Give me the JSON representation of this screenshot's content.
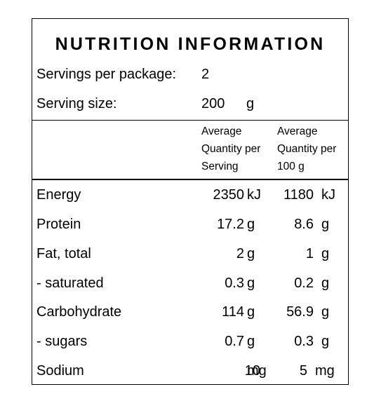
{
  "title": "NUTRITION INFORMATION",
  "servings_per_package": {
    "label": "Servings per package:",
    "value": "2"
  },
  "serving_size": {
    "label": "Serving size:",
    "value": "200",
    "unit": "g"
  },
  "column_headers": {
    "per_serving": [
      "Average",
      "Quantity per",
      "Serving"
    ],
    "per_100g": [
      "Average",
      "Quantity per",
      "100 g"
    ]
  },
  "rows": [
    {
      "name": "Energy",
      "serving_value": "2350",
      "serving_unit": "kJ",
      "per100_value": "1180",
      "per100_unit": "kJ"
    },
    {
      "name": "Protein",
      "serving_value": "17.2",
      "serving_unit": "g",
      "per100_value": "8.6",
      "per100_unit": "g"
    },
    {
      "name": "Fat, total",
      "serving_value": "2",
      "serving_unit": "g",
      "per100_value": "1",
      "per100_unit": "g"
    },
    {
      "name": "- saturated",
      "serving_value": "0.3",
      "serving_unit": "g",
      "per100_value": "0.2",
      "per100_unit": "g"
    },
    {
      "name": "Carbohydrate",
      "serving_value": "114",
      "serving_unit": "g",
      "per100_value": "56.9",
      "per100_unit": "g"
    },
    {
      "name": "- sugars",
      "serving_value": "0.7",
      "serving_unit": "g",
      "per100_value": "0.3",
      "per100_unit": "g"
    },
    {
      "name": "Sodium",
      "serving_value": "10",
      "serving_unit": "mg",
      "per100_value": "5",
      "per100_unit": "mg"
    }
  ]
}
